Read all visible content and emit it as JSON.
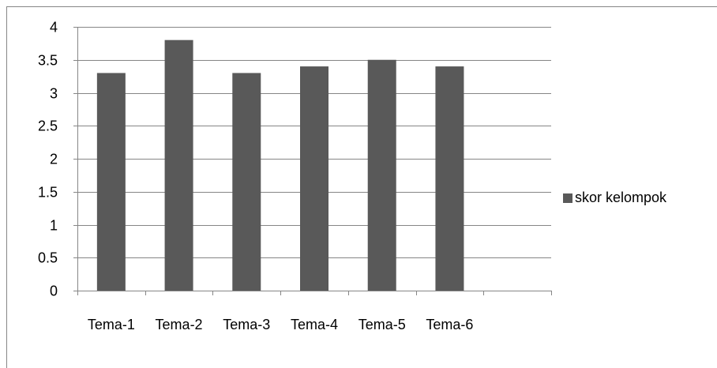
{
  "chart_data": {
    "type": "bar",
    "title": "",
    "xlabel": "",
    "ylabel": "",
    "categories": [
      "Tema-1",
      "Tema-2",
      "Tema-3",
      "Tema-4",
      "Tema-5",
      "Tema-6",
      ""
    ],
    "series": [
      {
        "name": "skor kelompok",
        "values": [
          3.3,
          3.8,
          3.3,
          3.4,
          3.5,
          3.4,
          null
        ]
      }
    ],
    "ylim": [
      0,
      4
    ],
    "yticks": [
      0,
      0.5,
      1,
      1.5,
      2,
      2.5,
      3,
      3.5,
      4
    ],
    "ytick_labels": [
      "0",
      "0.5",
      "1",
      "1.5",
      "2",
      "2.5",
      "3",
      "3.5",
      "4"
    ],
    "grid": true,
    "legend": "right",
    "colors": {
      "bar": "#595959",
      "grid": "#868686",
      "axis": "#868686",
      "frame": "#868686",
      "text": "#000000"
    }
  }
}
